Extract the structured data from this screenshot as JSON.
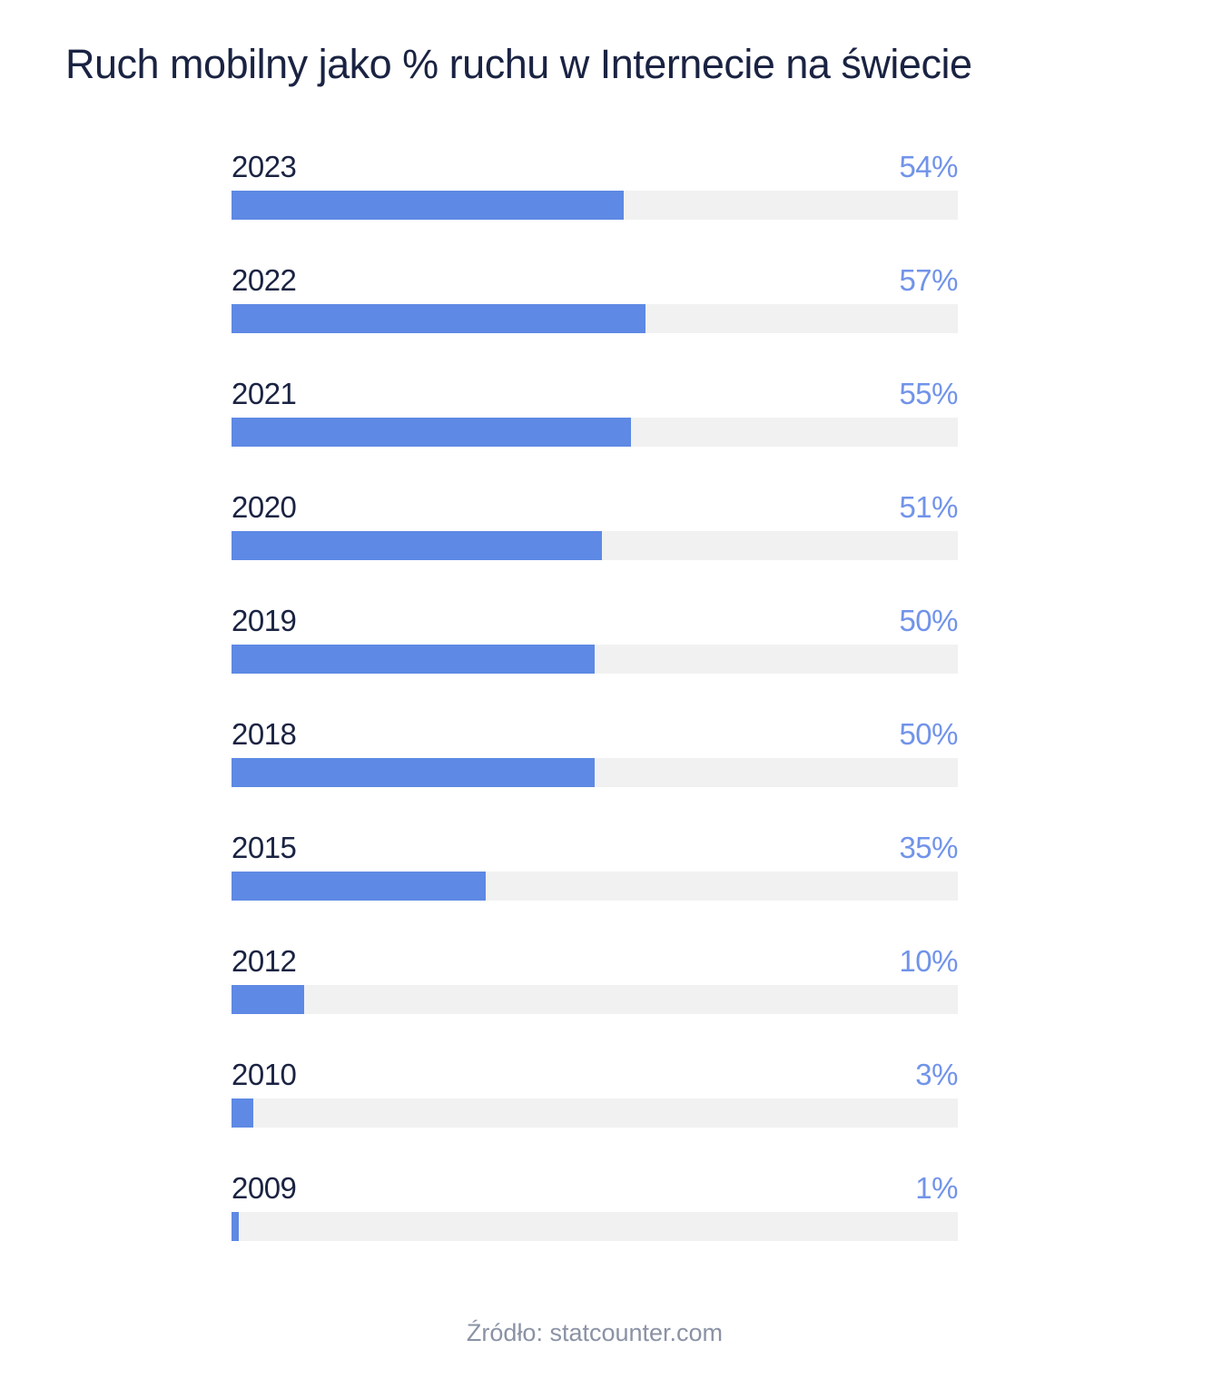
{
  "page": {
    "title": "Ruch mobilny jako % ruchu w Internecie na świecie",
    "source": "Źródło: statcounter.com"
  },
  "chart_data": {
    "type": "bar",
    "orientation": "horizontal",
    "title": "Ruch mobilny jako % ruchu w Internecie na świecie",
    "categories": [
      "2023",
      "2022",
      "2021",
      "2020",
      "2019",
      "2018",
      "2015",
      "2012",
      "2010",
      "2009"
    ],
    "values": [
      54,
      57,
      55,
      51,
      50,
      50,
      35,
      10,
      3,
      1
    ],
    "value_labels": [
      "54%",
      "57%",
      "55%",
      "51%",
      "50%",
      "50%",
      "35%",
      "10%",
      "3%",
      "1%"
    ],
    "xlabel": "",
    "ylabel": "",
    "xlim": [
      0,
      100
    ],
    "grid": false,
    "legend": false,
    "value_label_position": "right-aligned-above-bar",
    "category_label_position": "left-aligned-above-bar",
    "source": "Źródło: statcounter.com",
    "colors": {
      "background": "#ffffff",
      "bar_fill": "#5e89e4",
      "bar_track": "#f1f1f2",
      "value_label": "#7193e9",
      "category_label": "#1a2342",
      "title": "#1a2342",
      "source": "#8a92a5"
    }
  }
}
